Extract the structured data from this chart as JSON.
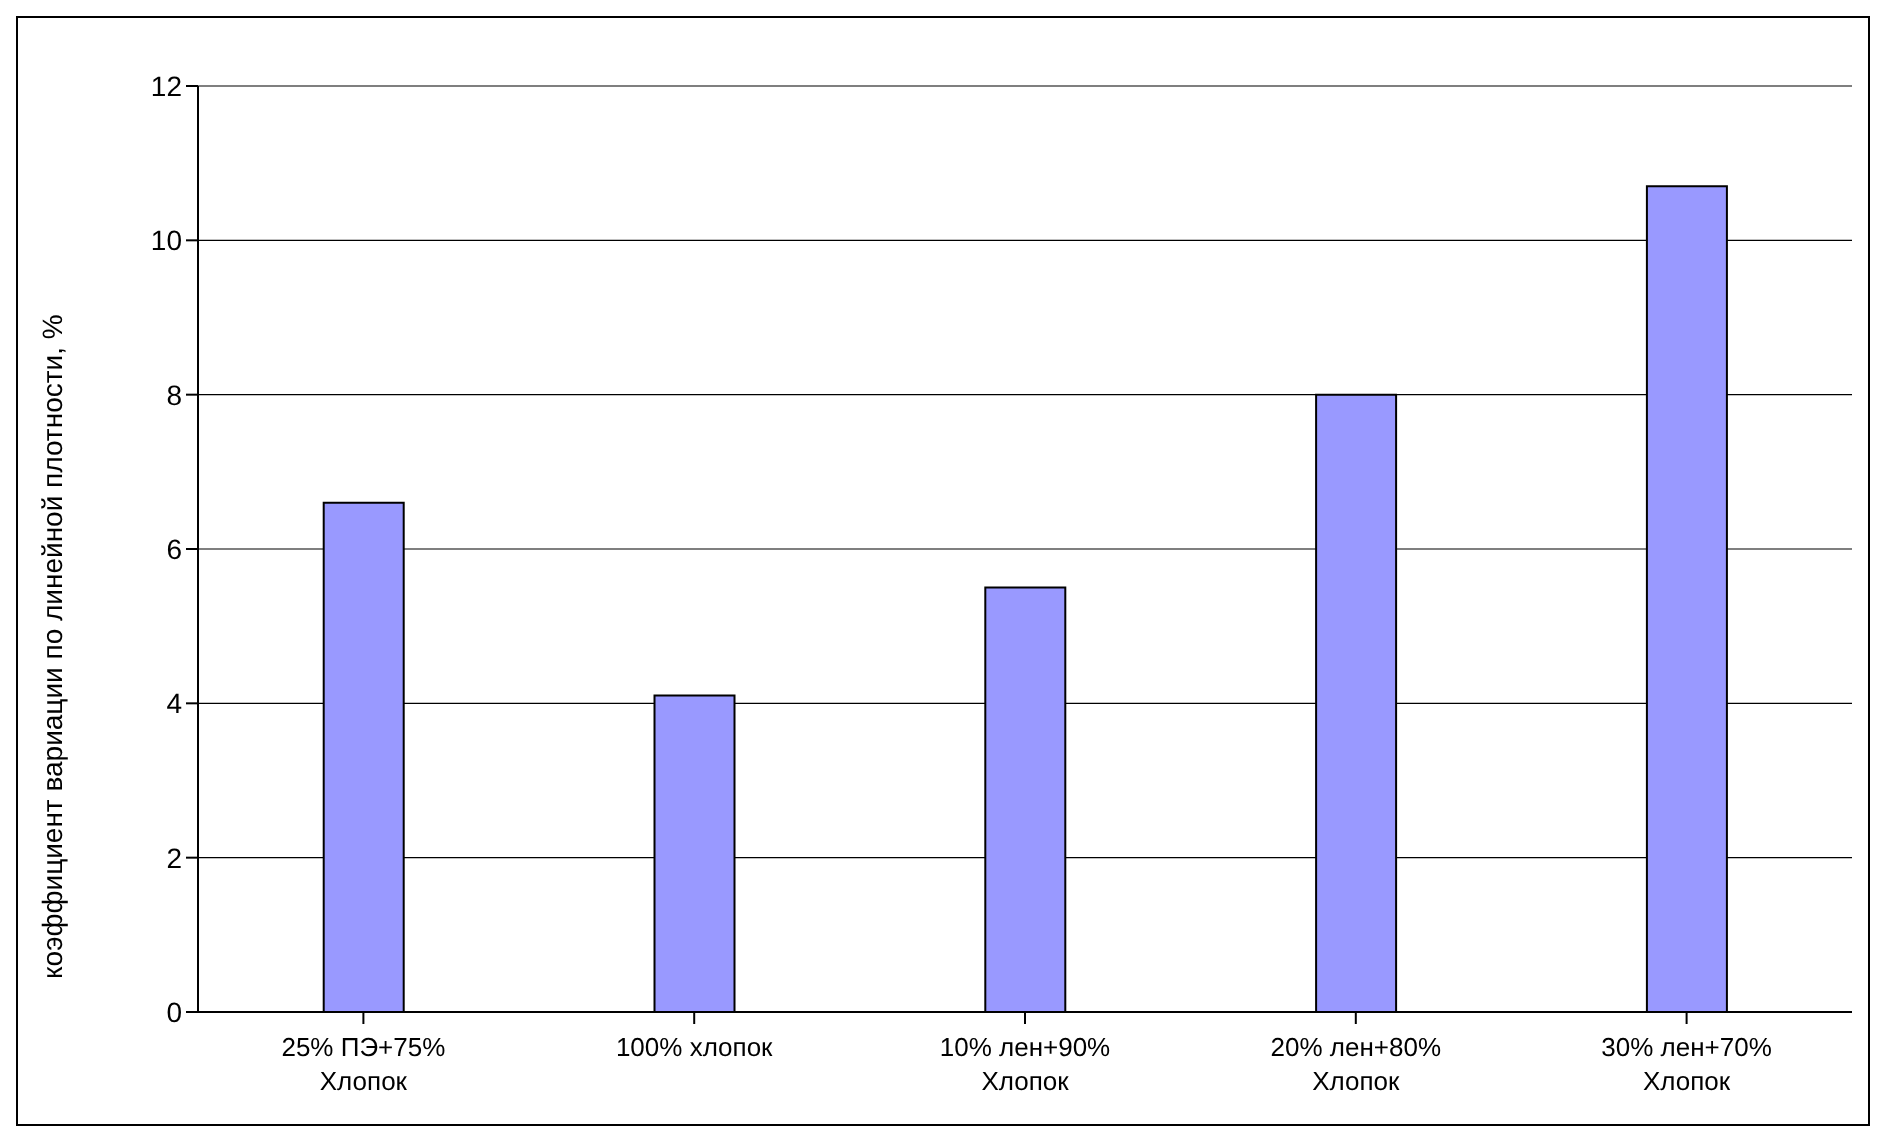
{
  "chart_data": {
    "type": "bar",
    "ylabel": "коэффициент вариации по линейной плотности, %",
    "categories": [
      "25% ПЭ+75%\nХлопок",
      "100% хлопок",
      "10% лен+90%\nХлопок",
      "20% лен+80%\nХлопок",
      "30% лен+70%\nХлопок"
    ],
    "values": [
      6.6,
      4.1,
      5.5,
      8.0,
      10.7
    ],
    "color": "#9999ff",
    "ylim": [
      0,
      12
    ],
    "yticks": [
      0,
      2,
      4,
      6,
      8,
      10,
      12
    ],
    "grid": "y",
    "legend": false
  }
}
